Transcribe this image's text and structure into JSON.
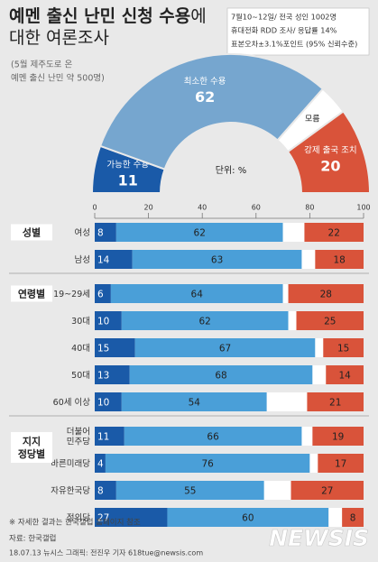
{
  "header": {
    "title_lines": [
      [
        {
          "t": "예멘 출신 난민 신청 수용",
          "b": true
        },
        {
          "t": "에",
          "b": false
        }
      ],
      [
        {
          "t": "대한 여론조사",
          "b": false
        }
      ]
    ],
    "subtitle_lines": [
      "(5월 제주도로 온",
      "예멘 출신 난민 약 500명)"
    ],
    "survey_info": [
      "7월10~12일/ 전국 성인 1002명",
      "휴대전화 RDD 조사/ 응답률 14%",
      "표본오차±3.1%포인트 (95% 신뢰수준)"
    ]
  },
  "colors": {
    "background": "#e9e9e9",
    "accept": "#1a5aa8",
    "minimal": "#4a9fd8",
    "minimal_donut": "#76a6cf",
    "unknown": "#ffffff",
    "deport": "#d9533a",
    "group_label_bg": "#ffffff",
    "text_dark": "#222222",
    "text_muted": "#666666"
  },
  "chart_data": [
    {
      "type": "pie",
      "variant": "half-donut",
      "unit_label": "단위: %",
      "slices": [
        {
          "label": "가능한 수용",
          "value": 11
        },
        {
          "label": "최소한 수용",
          "value": 62
        },
        {
          "label": "모름",
          "value": 7
        },
        {
          "label": "강제 출국 조치",
          "value": 20
        }
      ]
    },
    {
      "type": "bar",
      "stacked": true,
      "orientation": "horizontal",
      "xlim": [
        0,
        100
      ],
      "ticks": [
        0,
        20,
        40,
        60,
        80,
        100
      ],
      "series_keys": [
        "가능한 수용",
        "최소한 수용",
        "모름",
        "강제 출국 조치"
      ],
      "groups": [
        {
          "label": [
            "성별"
          ],
          "rows": [
            {
              "label": [
                "여성"
              ],
              "values": [
                8,
                62,
                8,
                22
              ]
            },
            {
              "label": [
                "남성"
              ],
              "values": [
                14,
                63,
                5,
                18
              ]
            }
          ]
        },
        {
          "label": [
            "연령별"
          ],
          "rows": [
            {
              "label": [
                "19~29세"
              ],
              "values": [
                6,
                64,
                2,
                28
              ]
            },
            {
              "label": [
                "30대"
              ],
              "values": [
                10,
                62,
                3,
                25
              ]
            },
            {
              "label": [
                "40대"
              ],
              "values": [
                15,
                67,
                3,
                15
              ]
            },
            {
              "label": [
                "50대"
              ],
              "values": [
                13,
                68,
                5,
                14
              ]
            },
            {
              "label": [
                "60세 이상"
              ],
              "values": [
                10,
                54,
                15,
                21
              ]
            }
          ]
        },
        {
          "label": [
            "지지",
            "정당별"
          ],
          "rows": [
            {
              "label": [
                "더불어",
                "민주당"
              ],
              "values": [
                11,
                66,
                4,
                19
              ]
            },
            {
              "label": [
                "바른미래당"
              ],
              "values": [
                4,
                76,
                3,
                17
              ]
            },
            {
              "label": [
                "자유한국당"
              ],
              "values": [
                8,
                55,
                10,
                27
              ]
            },
            {
              "label": [
                "정의당"
              ],
              "values": [
                27,
                60,
                5,
                8
              ]
            }
          ]
        }
      ]
    }
  ],
  "footer": {
    "note": "※ 자세한 결과는 한국갤럽 홈페이지 참조",
    "source": "자료: 한국갤럽",
    "credit": "18.07.13 뉴시스 그래픽: 전진우 기자 618tue@newsis.com",
    "watermark": "NEWSIS"
  }
}
